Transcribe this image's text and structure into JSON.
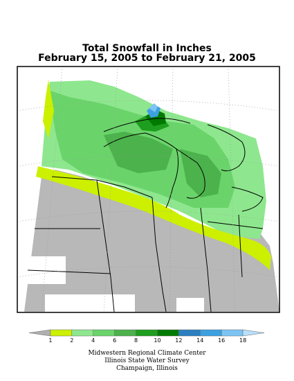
{
  "title": {
    "line1": "Total Snowfall in Inches",
    "line2": "February 15, 2005 to February 21, 2005"
  },
  "legend": {
    "ticks": [
      "1",
      "2",
      "4",
      "6",
      "8",
      "10",
      "12",
      "14",
      "16",
      "18"
    ],
    "colors": [
      "#b0b0b0",
      "#ccf000",
      "#8ee78e",
      "#6ad46a",
      "#4cb24c",
      "#1e9e1e",
      "#007a00",
      "#2b7fc0",
      "#3da0e0",
      "#7cc4f4",
      "#b8e0fb"
    ]
  },
  "credits": {
    "line1": "Midwestern Regional Climate Center",
    "line2": "Illinois State Water Survey",
    "line3": "Champaign, Illinois"
  }
}
